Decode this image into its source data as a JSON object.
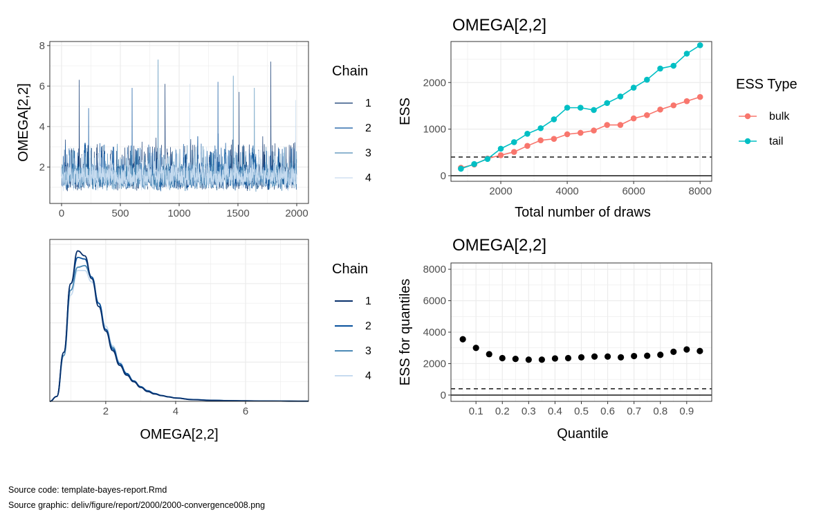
{
  "colors": {
    "chain1": "#08306b",
    "chain2": "#08519c",
    "chain3": "#4a89b5",
    "chain4": "#c6dbef",
    "bulk": "#f8766d",
    "tail": "#00bfc4",
    "grid": "#ebebeb",
    "panel_border": "#333333"
  },
  "source": {
    "code": "Source code: template-bayes-report.Rmd",
    "graphic": "Source graphic: deliv/figure/report/2000/2000-convergence008.png"
  },
  "chart_data": [
    {
      "id": "trace",
      "type": "line",
      "title": "",
      "xlabel": "",
      "ylabel": "OMEGA[2,2]",
      "xlim": [
        -100,
        2100
      ],
      "ylim": [
        0.2,
        8.2
      ],
      "xticks": [
        "0",
        "500",
        "1000",
        "1500",
        "2000"
      ],
      "yticks": [
        "2",
        "4",
        "6",
        "8"
      ],
      "n_iterations": 2000,
      "legend": {
        "title": "Chain",
        "position": "right",
        "labels": [
          "1",
          "2",
          "3",
          "4"
        ]
      },
      "series": [
        {
          "name": "1",
          "typical_range": [
            0.7,
            3.6
          ],
          "peaks": [
            [
              150,
              6.3
            ],
            [
              1780,
              7.2
            ],
            [
              880,
              6.1
            ],
            [
              1510,
              5.7
            ]
          ]
        },
        {
          "name": "2",
          "typical_range": [
            0.7,
            3.6
          ],
          "peaks": [
            [
              600,
              5.9
            ],
            [
              1330,
              6.2
            ],
            [
              230,
              4.9
            ]
          ]
        },
        {
          "name": "3",
          "typical_range": [
            0.7,
            3.4
          ],
          "peaks": [
            [
              820,
              7.3
            ],
            [
              1460,
              6.5
            ],
            [
              1640,
              5.9
            ]
          ]
        },
        {
          "name": "4",
          "typical_range": [
            0.7,
            3.2
          ],
          "peaks": [
            [
              1090,
              6.1
            ],
            [
              1990,
              5.3
            ]
          ]
        }
      ]
    },
    {
      "id": "density",
      "type": "line",
      "title": "",
      "xlabel": "OMEGA[2,2]",
      "ylabel": "",
      "xlim": [
        0.4,
        7.8
      ],
      "xticks": [
        "2",
        "4",
        "6"
      ],
      "legend": {
        "title": "Chain",
        "position": "right",
        "labels": [
          "1",
          "2",
          "3",
          "4"
        ]
      },
      "series": [
        {
          "name": "1",
          "x": [
            0.4,
            0.6,
            0.8,
            1.0,
            1.2,
            1.4,
            1.6,
            1.8,
            2.0,
            2.2,
            2.4,
            2.6,
            2.8,
            3.0,
            3.2,
            3.4,
            3.6,
            3.8,
            4.0,
            4.5,
            5.0,
            5.5,
            6.0,
            6.5,
            7.0,
            7.5,
            7.8
          ],
          "y": [
            0,
            0.03,
            0.3,
            0.72,
            0.92,
            0.89,
            0.75,
            0.58,
            0.43,
            0.31,
            0.22,
            0.16,
            0.12,
            0.085,
            0.06,
            0.045,
            0.035,
            0.027,
            0.02,
            0.01,
            0.006,
            0.004,
            0.003,
            0.002,
            0.0015,
            0.001,
            0.001
          ]
        },
        {
          "name": "2",
          "x": [
            0.4,
            0.6,
            0.8,
            1.0,
            1.2,
            1.4,
            1.6,
            1.8,
            2.0,
            2.2,
            2.4,
            2.6,
            2.8,
            3.0,
            3.2,
            3.4,
            3.6,
            3.8,
            4.0,
            4.5,
            5.0,
            5.5,
            6.0,
            6.5,
            7.0,
            7.5,
            7.8
          ],
          "y": [
            0,
            0.03,
            0.3,
            0.72,
            0.88,
            0.87,
            0.76,
            0.6,
            0.44,
            0.32,
            0.23,
            0.17,
            0.125,
            0.09,
            0.065,
            0.048,
            0.036,
            0.028,
            0.021,
            0.011,
            0.007,
            0.004,
            0.003,
            0.002,
            0.0015,
            0.001,
            0.001
          ]
        },
        {
          "name": "3",
          "x": [
            0.4,
            0.6,
            0.8,
            1.0,
            1.2,
            1.4,
            1.6,
            1.8,
            2.0,
            2.2,
            2.4,
            2.6,
            2.8,
            3.0,
            3.2,
            3.4,
            3.6,
            3.8,
            4.0,
            4.5,
            5.0,
            5.5,
            6.0,
            6.5,
            7.0,
            7.5,
            7.8
          ],
          "y": [
            0,
            0.03,
            0.28,
            0.68,
            0.82,
            0.83,
            0.76,
            0.6,
            0.44,
            0.33,
            0.23,
            0.165,
            0.12,
            0.088,
            0.062,
            0.046,
            0.035,
            0.027,
            0.02,
            0.011,
            0.007,
            0.004,
            0.003,
            0.002,
            0.0015,
            0.001,
            0.001
          ]
        },
        {
          "name": "4",
          "x": [
            0.4,
            0.6,
            0.8,
            1.0,
            1.2,
            1.4,
            1.6,
            1.8,
            2.0,
            2.2,
            2.4,
            2.6,
            2.8,
            3.0,
            3.2,
            3.4,
            3.6,
            3.8,
            4.0,
            4.5,
            5.0,
            5.5,
            6.0,
            6.5,
            7.0,
            7.5,
            7.8
          ],
          "y": [
            0,
            0.03,
            0.28,
            0.65,
            0.8,
            0.8,
            0.73,
            0.6,
            0.46,
            0.34,
            0.24,
            0.17,
            0.125,
            0.09,
            0.065,
            0.048,
            0.036,
            0.028,
            0.021,
            0.011,
            0.007,
            0.005,
            0.004,
            0.003,
            0.002,
            0.0015,
            0.001
          ]
        }
      ]
    },
    {
      "id": "ess-draws",
      "type": "line",
      "title": "OMEGA[2,2]",
      "xlabel": "Total number of draws",
      "ylabel": "ESS",
      "xlim": [
        500,
        8350
      ],
      "ylim": [
        -120,
        2880
      ],
      "xticks": [
        "2000",
        "4000",
        "6000",
        "8000"
      ],
      "yticks": [
        "0",
        "1000",
        "2000"
      ],
      "reference_lines": {
        "solid": 0,
        "dashed": 400
      },
      "legend": {
        "title": "ESS Type",
        "position": "right",
        "labels": [
          "bulk",
          "tail"
        ]
      },
      "x": [
        800,
        1200,
        1600,
        2000,
        2400,
        2800,
        3200,
        3600,
        4000,
        4400,
        4800,
        5200,
        5600,
        6000,
        6400,
        6800,
        7200,
        7600,
        8000
      ],
      "series": [
        {
          "name": "bulk",
          "values": [
            170,
            240,
            370,
            440,
            510,
            640,
            760,
            790,
            890,
            920,
            970,
            1090,
            1090,
            1230,
            1300,
            1420,
            1510,
            1600,
            1690
          ]
        },
        {
          "name": "tail",
          "values": [
            150,
            250,
            360,
            580,
            720,
            900,
            1020,
            1210,
            1460,
            1460,
            1410,
            1560,
            1700,
            1890,
            2060,
            2300,
            2360,
            2620,
            2800
          ]
        }
      ]
    },
    {
      "id": "ess-quantile",
      "type": "scatter",
      "title": "OMEGA[2,2]",
      "xlabel": "Quantile",
      "ylabel": "ESS for quantiles",
      "xlim": [
        0.005,
        0.995
      ],
      "ylim": [
        -400,
        8400
      ],
      "xticks": [
        "0.1",
        "0.2",
        "0.3",
        "0.4",
        "0.5",
        "0.6",
        "0.7",
        "0.8",
        "0.9"
      ],
      "yticks": [
        "0",
        "2000",
        "4000",
        "6000",
        "8000"
      ],
      "reference_lines": {
        "solid": 0,
        "dashed": 400
      },
      "x": [
        0.05,
        0.1,
        0.15,
        0.2,
        0.25,
        0.3,
        0.35,
        0.4,
        0.45,
        0.5,
        0.55,
        0.6,
        0.65,
        0.7,
        0.75,
        0.8,
        0.85,
        0.9,
        0.95
      ],
      "values": [
        3550,
        3000,
        2600,
        2350,
        2300,
        2250,
        2250,
        2330,
        2350,
        2400,
        2450,
        2450,
        2400,
        2480,
        2500,
        2560,
        2750,
        2900,
        2800
      ]
    }
  ]
}
